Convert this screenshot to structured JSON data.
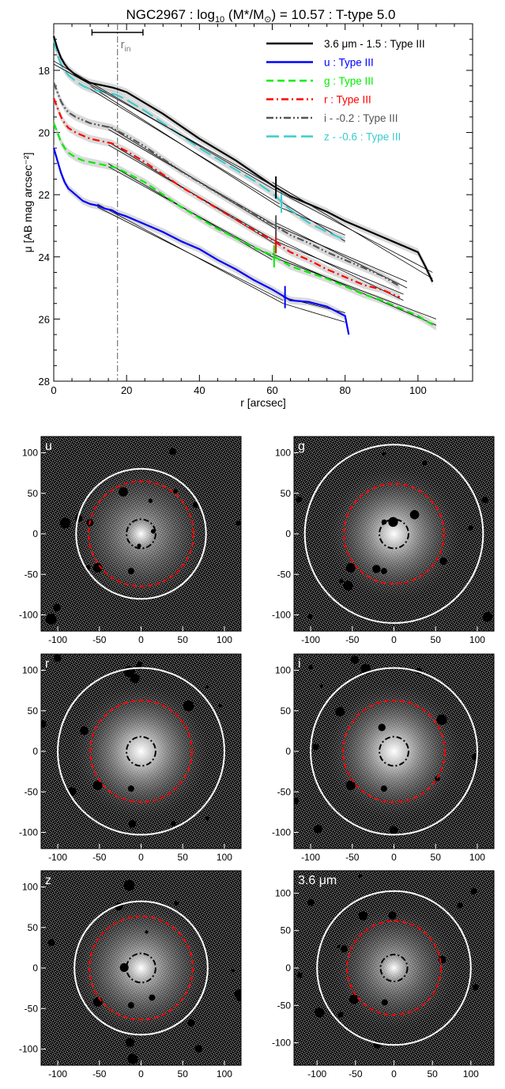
{
  "figure": {
    "title": "NGC2967 : log10 (M*/M⊙) = 10.57 : T-type 5.0",
    "title_parts": {
      "name": "NGC2967 : log",
      "sub": "10",
      "mass": " (M*/M",
      "sun": "⊙",
      "rest": ") = 10.57 : T-type 5.0"
    }
  },
  "chart_data": [
    {
      "type": "line",
      "title": "NGC2967 : log10 (M*/M⊙) = 10.57 : T-type 5.0",
      "xlabel": "r [arcsec]",
      "ylabel": "μ [AB mag arcsec⁻²]",
      "xlim": [
        0,
        115
      ],
      "ylim": [
        28,
        16.5
      ],
      "y_inverted": true,
      "xticks": [
        0,
        20,
        40,
        60,
        80,
        100
      ],
      "yticks": [
        18,
        20,
        22,
        24,
        26,
        28
      ],
      "grid": false,
      "legend_position": "top-right",
      "annotations": {
        "r_in_label": "r",
        "r_in_sub": "in",
        "r_in": 17.5,
        "r_in_bar": [
          10.5,
          24.5
        ]
      },
      "series": [
        {
          "name": "3.6 μm - 1.5 : Type III",
          "color": "#000000",
          "dash": "solid",
          "x": [
            0,
            1,
            2,
            3,
            4,
            6,
            8,
            10,
            12,
            14,
            16,
            17.5,
            20,
            25,
            30,
            35,
            40,
            45,
            50,
            55,
            60,
            65,
            70,
            75,
            80,
            85,
            90,
            95,
            100,
            102,
            104
          ],
          "y": [
            16.9,
            17.3,
            17.6,
            17.8,
            17.95,
            18.15,
            18.3,
            18.4,
            18.45,
            18.5,
            18.55,
            18.6,
            18.7,
            19.05,
            19.4,
            19.8,
            20.2,
            20.55,
            20.9,
            21.3,
            21.7,
            22.05,
            22.3,
            22.55,
            22.85,
            23.1,
            23.35,
            23.6,
            23.85,
            24.3,
            24.8
          ],
          "fits": [
            {
              "x": [
                0,
                60
              ],
              "y": [
                17.8,
                21.7
              ]
            },
            {
              "x": [
                0,
                60
              ],
              "y": [
                17.7,
                21.8
              ]
            },
            {
              "x": [
                60,
                104
              ],
              "y": [
                21.8,
                24.5
              ]
            },
            {
              "x": [
                60,
                104
              ],
              "y": [
                21.6,
                24.7
              ]
            }
          ],
          "break_r": 61
        },
        {
          "name": "u : Type III",
          "color": "#0000ff",
          "dash": "solid",
          "x": [
            0,
            1,
            2,
            3,
            4,
            6,
            8,
            10,
            12,
            14,
            16,
            17.5,
            20,
            25,
            30,
            35,
            40,
            45,
            50,
            55,
            60,
            65,
            70,
            75,
            80,
            81
          ],
          "y": [
            20.5,
            20.9,
            21.3,
            21.6,
            21.8,
            22.0,
            22.2,
            22.3,
            22.35,
            22.45,
            22.5,
            22.6,
            22.7,
            22.95,
            23.2,
            23.5,
            23.75,
            24.1,
            24.4,
            24.75,
            25.05,
            25.4,
            25.45,
            25.6,
            25.9,
            26.5
          ],
          "fits": [
            {
              "x": [
                12,
                63
              ],
              "y": [
                22.4,
                25.4
              ]
            },
            {
              "x": [
                12,
                63
              ],
              "y": [
                22.3,
                25.5
              ]
            },
            {
              "x": [
                63,
                80
              ],
              "y": [
                25.3,
                25.8
              ]
            },
            {
              "x": [
                63,
                80
              ],
              "y": [
                25.5,
                26.1
              ]
            }
          ],
          "break_r": 63.5
        },
        {
          "name": "g : Type III",
          "color": "#00ee00",
          "dash": "dashed",
          "x": [
            0,
            1,
            2,
            3,
            4,
            6,
            8,
            10,
            12,
            14,
            16,
            17.5,
            20,
            25,
            30,
            35,
            40,
            45,
            50,
            55,
            60,
            65,
            70,
            75,
            80,
            85,
            90,
            95,
            100,
            105
          ],
          "y": [
            19.7,
            20.0,
            20.3,
            20.5,
            20.65,
            20.8,
            20.9,
            20.95,
            21.0,
            21.05,
            21.1,
            21.15,
            21.3,
            21.6,
            22.0,
            22.4,
            22.75,
            23.1,
            23.4,
            23.7,
            23.95,
            24.3,
            24.5,
            24.7,
            24.95,
            25.2,
            25.4,
            25.65,
            25.9,
            26.25
          ],
          "fits": [
            {
              "x": [
                15,
                60
              ],
              "y": [
                21.1,
                24.0
              ]
            },
            {
              "x": [
                15,
                60
              ],
              "y": [
                21.0,
                24.1
              ]
            },
            {
              "x": [
                60,
                105
              ],
              "y": [
                24.0,
                26.0
              ]
            },
            {
              "x": [
                60,
                105
              ],
              "y": [
                23.9,
                26.2
              ]
            }
          ],
          "break_r": 60.5
        },
        {
          "name": "r : Type III",
          "color": "#ff0000",
          "dash": "dashdot",
          "x": [
            0,
            1,
            2,
            3,
            4,
            6,
            8,
            10,
            12,
            14,
            16,
            17.5,
            20,
            25,
            30,
            35,
            40,
            45,
            50,
            55,
            60,
            65,
            70,
            75,
            80,
            85,
            90,
            95
          ],
          "y": [
            18.9,
            19.2,
            19.5,
            19.7,
            19.85,
            20.0,
            20.1,
            20.2,
            20.25,
            20.3,
            20.35,
            20.45,
            20.6,
            20.95,
            21.35,
            21.75,
            22.1,
            22.45,
            22.8,
            23.15,
            23.45,
            23.85,
            24.1,
            24.4,
            24.65,
            24.9,
            25.05,
            25.3
          ],
          "fits": [
            {
              "x": [
                15,
                61
              ],
              "y": [
                20.4,
                23.5
              ]
            },
            {
              "x": [
                15,
                61
              ],
              "y": [
                20.3,
                23.6
              ]
            },
            {
              "x": [
                61,
                96
              ],
              "y": [
                23.5,
                25.2
              ]
            },
            {
              "x": [
                61,
                96
              ],
              "y": [
                23.4,
                25.4
              ]
            }
          ],
          "break_r": 61
        },
        {
          "name": "i - -0.2 : Type III",
          "color": "#555555",
          "dash": "dashdotdot",
          "x": [
            0,
            1,
            2,
            3,
            4,
            6,
            8,
            10,
            12,
            14,
            16,
            17.5,
            20,
            25,
            30,
            35,
            40,
            45,
            50,
            55,
            60,
            65,
            70,
            75,
            80,
            85,
            90,
            95
          ],
          "y": [
            18.4,
            18.7,
            19.0,
            19.2,
            19.35,
            19.5,
            19.6,
            19.7,
            19.75,
            19.8,
            19.85,
            19.95,
            20.1,
            20.45,
            20.85,
            21.25,
            21.6,
            21.95,
            22.3,
            22.65,
            22.95,
            23.3,
            23.55,
            23.85,
            24.1,
            24.35,
            24.6,
            24.95
          ],
          "fits": [
            {
              "x": [
                15,
                61
              ],
              "y": [
                19.9,
                23.0
              ]
            },
            {
              "x": [
                15,
                61
              ],
              "y": [
                19.8,
                23.1
              ]
            },
            {
              "x": [
                61,
                97
              ],
              "y": [
                23.0,
                24.8
              ]
            },
            {
              "x": [
                61,
                97
              ],
              "y": [
                22.9,
                25.0
              ]
            }
          ],
          "break_r": 61
        },
        {
          "name": "z - -0.6 : Type III",
          "color": "#3ecbcb",
          "dash": "longdash",
          "x": [
            0,
            1,
            2,
            3,
            4,
            6,
            8,
            10,
            12,
            14,
            16,
            17.5,
            20,
            25,
            30,
            35,
            40,
            45,
            50,
            55,
            60,
            65,
            70,
            75,
            80
          ],
          "y": [
            17.0,
            17.5,
            17.8,
            18.0,
            18.15,
            18.35,
            18.5,
            18.6,
            18.65,
            18.7,
            18.75,
            18.8,
            18.95,
            19.3,
            19.7,
            20.1,
            20.5,
            20.85,
            21.2,
            21.55,
            21.95,
            22.5,
            22.9,
            23.2,
            23.45
          ],
          "fits": [
            {
              "x": [
                10,
                62
              ],
              "y": [
                18.6,
                22.3
              ]
            },
            {
              "x": [
                10,
                62
              ],
              "y": [
                18.5,
                22.4
              ]
            },
            {
              "x": [
                62,
                80
              ],
              "y": [
                22.4,
                23.3
              ]
            },
            {
              "x": [
                62,
                80
              ],
              "y": [
                22.2,
                23.5
              ]
            }
          ],
          "break_r": 62.5
        }
      ]
    },
    {
      "type": "heatmap",
      "panels": [
        {
          "label": "u",
          "xlim": [
            -120,
            120
          ],
          "ylim": [
            -120,
            120
          ],
          "xticks": [
            -100,
            -50,
            0,
            50,
            100
          ],
          "yticks": [
            100,
            50,
            0,
            -50,
            -100
          ],
          "outer_r": 78,
          "break_r": 63,
          "inner_r": 17.5,
          "brightness": 0.55
        },
        {
          "label": "g",
          "xlim": [
            -120,
            120
          ],
          "ylim": [
            -120,
            120
          ],
          "xticks": [
            -100,
            -50,
            0,
            50,
            100
          ],
          "yticks": [
            100,
            50,
            0,
            -50,
            -100
          ],
          "outer_r": 107,
          "break_r": 60,
          "inner_r": 17.5,
          "brightness": 0.8
        },
        {
          "label": "r",
          "xlim": [
            -120,
            120
          ],
          "ylim": [
            -120,
            120
          ],
          "xticks": [
            -100,
            -50,
            0,
            50,
            100
          ],
          "yticks": [
            100,
            50,
            0,
            -50,
            -100
          ],
          "outer_r": 100,
          "break_r": 61,
          "inner_r": 17.5,
          "brightness": 0.85
        },
        {
          "label": "i",
          "xlim": [
            -120,
            120
          ],
          "ylim": [
            -120,
            120
          ],
          "xticks": [
            -100,
            -50,
            0,
            50,
            100
          ],
          "yticks": [
            100,
            50,
            0,
            -50,
            -100
          ],
          "outer_r": 100,
          "break_r": 61,
          "inner_r": 17.5,
          "brightness": 0.85
        },
        {
          "label": "z",
          "xlim": [
            -120,
            120
          ],
          "ylim": [
            -120,
            120
          ],
          "xticks": [
            -100,
            -50,
            0,
            50,
            100
          ],
          "yticks": [
            100,
            50,
            0,
            -50,
            -100
          ],
          "outer_r": 80,
          "break_r": 62,
          "inner_r": 17.5,
          "brightness": 0.7
        },
        {
          "label": "3.6 μm",
          "xlim": [
            -130,
            130
          ],
          "ylim": [
            -130,
            130
          ],
          "xticks": [
            -100,
            -50,
            0,
            50,
            100
          ],
          "yticks": [
            100,
            50,
            0,
            -50,
            -100
          ],
          "outer_r": 100,
          "break_r": 61,
          "inner_r": 17.5,
          "brightness": 0.6
        }
      ]
    }
  ],
  "colors": {
    "outer_circle": "#ffffff",
    "break_circle": "#ff0000",
    "inner_circle": "#000000",
    "rin_line": "#777777",
    "fit_line": "#000000",
    "error_band": "#bbbbbb"
  }
}
